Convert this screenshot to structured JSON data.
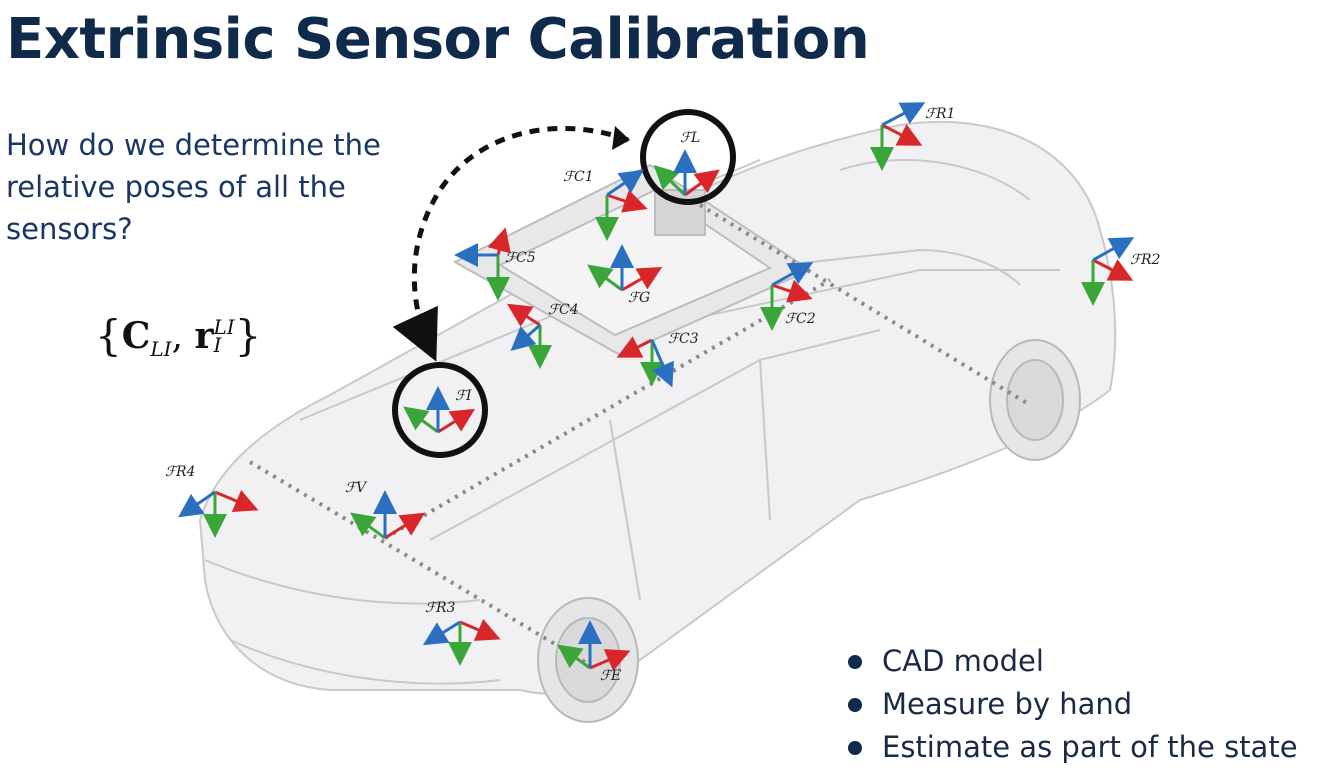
{
  "slide": {
    "title": "Extrinsic Sensor Calibration",
    "question": "How do we determine the relative poses of all the sensors?",
    "equation": {
      "C": "C",
      "C_sub": "LI",
      "r": "r",
      "r_sup": "LI",
      "r_sub": "I"
    },
    "bullets": [
      "CAD model",
      "Measure by hand",
      "Estimate as part of the state"
    ]
  },
  "diagram": {
    "colors": {
      "x_axis": "#d9262b",
      "y_axis": "#3aa63a",
      "z_axis": "#2b6fc0",
      "connector": "#8a8a8a",
      "arrow": "#111111"
    },
    "frames": [
      {
        "id": "L",
        "label": "ℱL",
        "highlighted": true
      },
      {
        "id": "I",
        "label": "ℱI",
        "highlighted": true
      },
      {
        "id": "C1",
        "label": "ℱC1"
      },
      {
        "id": "C2",
        "label": "ℱC2"
      },
      {
        "id": "C3",
        "label": "ℱC3"
      },
      {
        "id": "C4",
        "label": "ℱC4"
      },
      {
        "id": "C5",
        "label": "ℱC5"
      },
      {
        "id": "G",
        "label": "ℱG"
      },
      {
        "id": "V",
        "label": "ℱV"
      },
      {
        "id": "E",
        "label": "ℱE"
      },
      {
        "id": "R1",
        "label": "ℱR1"
      },
      {
        "id": "R2",
        "label": "ℱR2"
      },
      {
        "id": "R3",
        "label": "ℱR3"
      },
      {
        "id": "R4",
        "label": "ℱR4"
      }
    ]
  }
}
